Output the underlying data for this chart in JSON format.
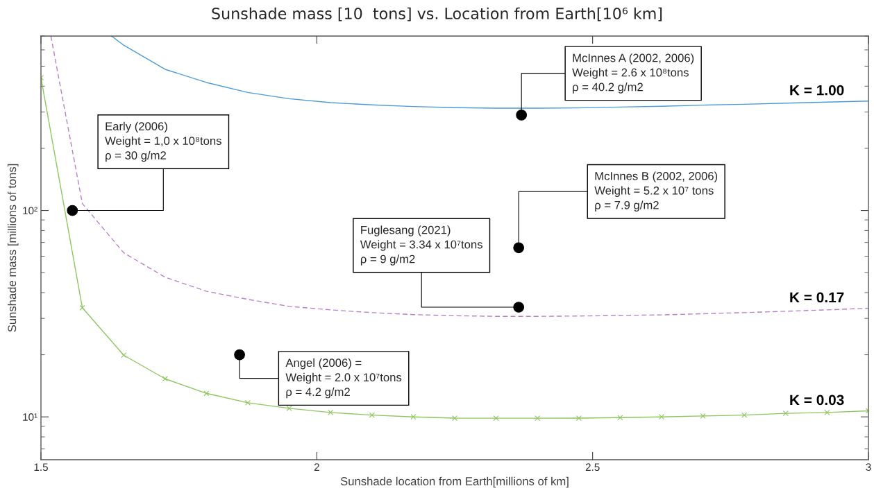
{
  "chart_data": {
    "type": "line",
    "title": "Sunshade mass [10  tons] vs. Location from Earth[10⁶ km]",
    "xlabel": "Sunshade location from Earth[millions of km]",
    "ylabel": "Sunshade mass [millions of tons]",
    "log": "y",
    "xlim": [
      1.5,
      3
    ],
    "xticks": [
      1.5,
      2,
      2.5,
      3
    ],
    "ylim": [
      6.2,
      700
    ],
    "yticks": [
      {
        "value": 10,
        "label": "10¹"
      },
      {
        "value": 100,
        "label": "10²"
      }
    ],
    "grid": false,
    "series": [
      {
        "name": "K = 1.00",
        "color": "#4a9bd6",
        "line_style": "solid",
        "marker": "none",
        "x": [
          1.628,
          1.65,
          1.725,
          1.8,
          1.875,
          1.95,
          2.025,
          2.1,
          2.175,
          2.25,
          2.325,
          2.4,
          2.475,
          2.55,
          2.625,
          2.7,
          2.775,
          2.85,
          2.925,
          3.0
        ],
        "values": [
          700,
          632,
          483,
          417,
          373,
          348,
          333,
          325,
          319,
          315,
          313,
          313,
          314,
          317,
          320,
          324,
          327,
          331,
          335,
          339
        ]
      },
      {
        "name": "K = 0.17",
        "color": "#b77fc9",
        "line_style": "dashed",
        "marker": "none",
        "x": [
          1.518,
          1.575,
          1.65,
          1.725,
          1.8,
          1.875,
          1.95,
          2.025,
          2.1,
          2.175,
          2.25,
          2.325,
          2.4,
          2.475,
          2.55,
          2.625,
          2.7,
          2.775,
          2.85,
          2.925,
          3.0
        ],
        "values": [
          700,
          108,
          62.4,
          47.5,
          40.6,
          37.1,
          34.3,
          33.0,
          32.0,
          31.3,
          30.9,
          30.7,
          30.7,
          30.8,
          31.0,
          31.2,
          31.6,
          32.0,
          32.5,
          33.0,
          33.6
        ]
      },
      {
        "name": "K = 0.03",
        "color": "#8dc55e",
        "line_style": "solid",
        "marker": "cross",
        "x": [
          1.5,
          1.575,
          1.65,
          1.725,
          1.8,
          1.875,
          1.95,
          2.025,
          2.1,
          2.175,
          2.25,
          2.325,
          2.4,
          2.475,
          2.55,
          2.625,
          2.7,
          2.775,
          2.85,
          2.925,
          3.0
        ],
        "values": [
          440,
          33.8,
          19.9,
          15.3,
          13.0,
          11.7,
          11.0,
          10.5,
          10.2,
          10.0,
          9.86,
          9.85,
          9.85,
          9.86,
          9.92,
          10.0,
          10.1,
          10.2,
          10.4,
          10.5,
          10.7
        ]
      },
      {
        "type": "scatter",
        "color": "#000000",
        "marker": "circle",
        "x": [
          1.557,
          2.371,
          2.366,
          2.366,
          1.86
        ],
        "values": [
          100,
          290,
          66,
          34,
          20
        ]
      }
    ],
    "annotations": [
      {
        "text": "Early (2006)\nWeight = 1,0 x 10⁸tons\nρ = 30 g/m2",
        "x": 1.557,
        "y": 100
      },
      {
        "text": "McInnes A (2002, 2006)\nWeight = 2.6 x 10⁸tons\nρ = 40.2 g/m2",
        "x": 2.371,
        "y": 290
      },
      {
        "text": "McInnes B (2002, 2006)\nWeight = 5.2 x 10⁷ tons\nρ = 7.9 g/m2",
        "x": 2.366,
        "y": 66
      },
      {
        "text": "Fuglesang (2021)\nWeight = 3.34 x 10⁷tons\nρ = 9 g/m2",
        "x": 2.366,
        "y": 34
      },
      {
        "text": "Angel (2006) =\nWeight = 2.0 x 10⁷tons\nρ = 4.2 g/m2",
        "x": 1.86,
        "y": 20
      }
    ]
  }
}
